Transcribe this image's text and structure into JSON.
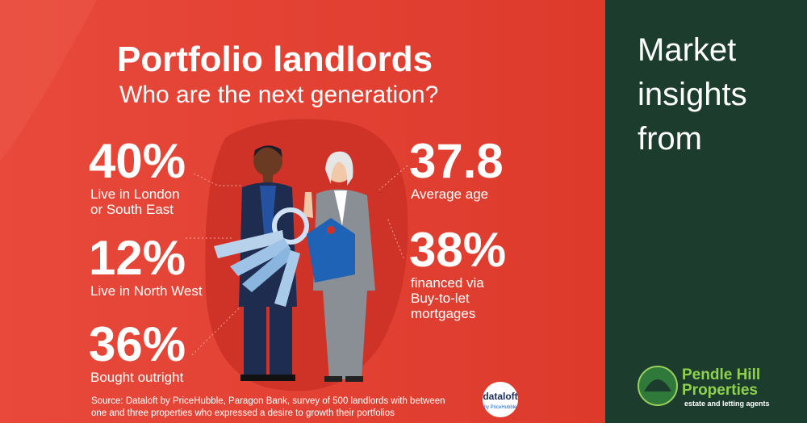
{
  "header": {
    "title": "Portfolio landlords",
    "subtitle": "Who are the next generation?"
  },
  "stats_left": [
    {
      "value": "40%",
      "label": [
        "Live in London",
        "or South East"
      ]
    },
    {
      "value": "12%",
      "label": [
        "Live in North West"
      ]
    },
    {
      "value": "36%",
      "label": [
        "Bought outright"
      ]
    }
  ],
  "stats_right": [
    {
      "value": "37.8",
      "label": [
        "Average age"
      ]
    },
    {
      "value": "38%",
      "label": [
        "financed via",
        "Buy-to-let",
        "mortgages"
      ]
    }
  ],
  "source": [
    "Source: Dataloft by PriceHubble, Paragon Bank, survey of 500 landlords with between",
    "one and three properties who expressed a desire to growth their portfolios"
  ],
  "dataloft": {
    "name": "dataloft",
    "sub": "by PriceHubble"
  },
  "sidebar": {
    "heading": [
      "Market",
      "insights",
      "from"
    ],
    "brand": [
      "Pendle Hill",
      "Properties"
    ],
    "tagline": "estate and letting agents"
  }
}
